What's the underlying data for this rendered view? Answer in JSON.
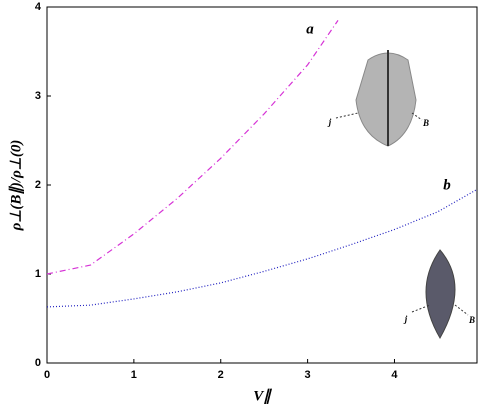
{
  "chart_data": {
    "type": "line",
    "x_label": "V∥",
    "y_label": "ρ⊥(B∥)/ρ⊥(0)",
    "xlim": [
      0,
      4.95
    ],
    "ylim": [
      0,
      4
    ],
    "xticks": [
      0,
      1,
      2,
      3,
      4
    ],
    "yticks": [
      0,
      1,
      2,
      3,
      4
    ],
    "series": [
      {
        "name": "a",
        "color": "#d633d6",
        "dash": "6 3 1 3",
        "x": [
          0,
          0.5,
          1,
          1.5,
          2,
          2.5,
          3,
          3.35
        ],
        "values": [
          1.0,
          1.1,
          1.45,
          1.85,
          2.3,
          2.8,
          3.35,
          3.85
        ]
      },
      {
        "name": "b",
        "color": "#2020c0",
        "dash": "1 2",
        "x": [
          0,
          0.5,
          1,
          1.5,
          2,
          2.5,
          3,
          3.5,
          4,
          4.5,
          4.95
        ],
        "values": [
          0.63,
          0.65,
          0.72,
          0.8,
          0.9,
          1.03,
          1.17,
          1.33,
          1.5,
          1.7,
          1.95
        ]
      }
    ],
    "annotations": [
      "j",
      "B",
      "j",
      "B"
    ]
  }
}
